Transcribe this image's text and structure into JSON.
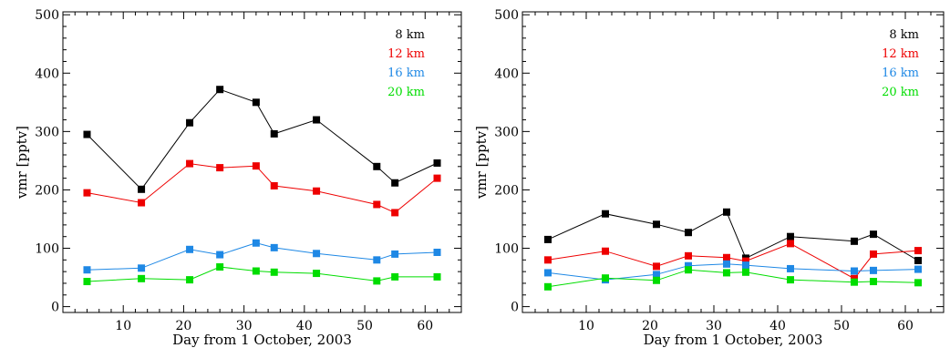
{
  "chart_data": [
    {
      "type": "line",
      "xlabel": "Day from 1 October, 2003",
      "ylabel": "vmr [pptv]",
      "xlim": [
        0,
        66
      ],
      "ylim": [
        -10,
        505
      ],
      "xticks": [
        10,
        20,
        30,
        40,
        50,
        60
      ],
      "yticks": [
        0,
        100,
        200,
        300,
        400,
        500
      ],
      "legend_position": "top-right",
      "grid": false,
      "x": [
        4,
        13,
        21,
        26,
        32,
        35,
        42,
        52,
        55,
        62
      ],
      "series": [
        {
          "name": "8 km",
          "color": "#000000",
          "values": [
            295,
            201,
            315,
            372,
            350,
            296,
            320,
            240,
            212,
            246
          ]
        },
        {
          "name": "12 km",
          "color": "#ee0000",
          "values": [
            195,
            178,
            245,
            238,
            241,
            207,
            198,
            175,
            161,
            220
          ]
        },
        {
          "name": "16 km",
          "color": "#1e88e5",
          "values": [
            63,
            66,
            98,
            89,
            109,
            101,
            91,
            80,
            90,
            93
          ]
        },
        {
          "name": "20 km",
          "color": "#00dd00",
          "values": [
            43,
            48,
            46,
            68,
            61,
            59,
            57,
            44,
            51,
            51
          ]
        }
      ]
    },
    {
      "type": "line",
      "xlabel": "Day from 1 October, 2003",
      "ylabel": "vmr [pptv]",
      "xlim": [
        0,
        66
      ],
      "ylim": [
        -10,
        505
      ],
      "xticks": [
        10,
        20,
        30,
        40,
        50,
        60
      ],
      "yticks": [
        0,
        100,
        200,
        300,
        400,
        500
      ],
      "legend_position": "top-right",
      "grid": false,
      "x": [
        4,
        13,
        21,
        26,
        32,
        35,
        42,
        52,
        55,
        62
      ],
      "series": [
        {
          "name": "8 km",
          "color": "#000000",
          "values": [
            115,
            159,
            141,
            127,
            162,
            83,
            120,
            112,
            124,
            79
          ]
        },
        {
          "name": "12 km",
          "color": "#ee0000",
          "values": [
            80,
            95,
            69,
            87,
            84,
            78,
            108,
            48,
            90,
            96
          ]
        },
        {
          "name": "16 km",
          "color": "#1e88e5",
          "values": [
            58,
            46,
            55,
            70,
            73,
            71,
            65,
            61,
            62,
            64
          ]
        },
        {
          "name": "20 km",
          "color": "#00dd00",
          "values": [
            34,
            49,
            45,
            63,
            58,
            59,
            46,
            42,
            43,
            41
          ]
        }
      ]
    }
  ]
}
